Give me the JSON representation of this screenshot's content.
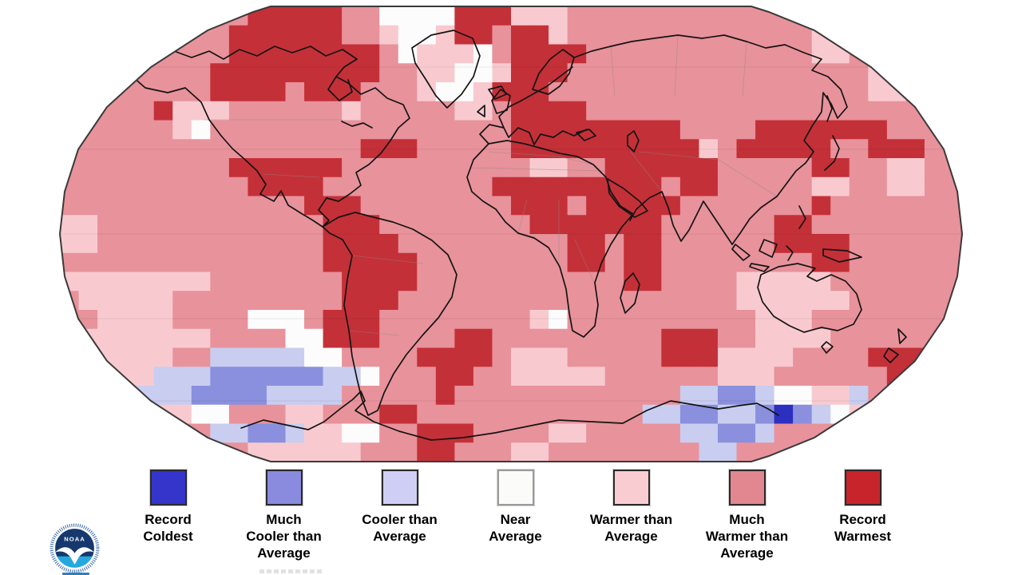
{
  "map": {
    "description": "Global temperature percentile world map, Robinson projection",
    "outline_color": "#3a3a3a",
    "coast_color": "#141414",
    "border_color": "#8a8a8a",
    "gridline_color": "#000000",
    "legend": [
      {
        "id": "record-coldest",
        "label_lines": [
          "Record",
          "Coldest"
        ],
        "color": "#3535cc",
        "border": "#2a2a2a"
      },
      {
        "id": "much-cooler",
        "label_lines": [
          "Much",
          "Cooler than",
          "Average"
        ],
        "color": "#8a8ade",
        "border": "#2a2a2a"
      },
      {
        "id": "cooler-than-average",
        "label_lines": [
          "Cooler than",
          "Average"
        ],
        "color": "#cfcff5",
        "border": "#2a2a2a"
      },
      {
        "id": "near-average",
        "label_lines": [
          "Near",
          "Average"
        ],
        "color": "#fbfbf9",
        "border": "#9a9a9a"
      },
      {
        "id": "warmer-than-average",
        "label_lines": [
          "Warmer than",
          "Average"
        ],
        "color": "#f9ccd1",
        "border": "#2a2a2a"
      },
      {
        "id": "much-warmer",
        "label_lines": [
          "Much",
          "Warmer than",
          "Average"
        ],
        "color": "#e2868f",
        "border": "#2a2a2a"
      },
      {
        "id": "record-warmest",
        "label_lines": [
          "Record",
          "Warmest"
        ],
        "color": "#c8242c",
        "border": "#2a2a2a"
      }
    ],
    "palette": {
      "K": "#2d2fc0",
      "M": "#8a90dd",
      "C": "#c9cdf0",
      "N": "#fcfcfc",
      "W": "#f8cacf",
      "H": "#e8929b",
      "R": "#c43038"
    },
    "grid": {
      "cols": 48,
      "rows": 24,
      "cells": [
        "HHHHHHHHHHRRRRRHHNNNNRRRWWWHHHHHHHHHHHHHHHHHHHHH",
        "HHHHHHHHHRRRRRRHHWNNWRRHRRWHHHHHHHHHHHHHWWHHHHHH",
        "HHHHHHHHHRRRRRRRRHNWWWNHRRRRHHHHHHHHHHHHWWHNWWHH",
        "HHHHHHHHRRRRRRRRRHHWWNNWRRRHHHHHHHHHHHHHHHHWWHHH",
        "HHHHHHHHRRRRHRRRHHHWNNWRRRHHHHHHHHHHHHHHHHHWWHHH",
        "HHHHHRWWWHHHHHHWHHHHHWWHRRRRHHHHHHHHHHHHHHHHHHWW",
        "HHHHHHWNHHHHHHHHHHHHHHHHRRRRRRRRRHHHHRRRRRRRHHHH",
        "HHHHHHHHHHHHHHHHRRRHHHHHRRRRRRRRRRWHRRRRRHHRRRHH",
        "HHHHHHHHHRRRRRRHHHHHHHHHHWWHHRRRRRRHHHHHRRHHWWHH",
        "HHHHHHHHHHRRRRHHHHHHHHHRRRRRRRRRHRRHHHHHWWHHWWHH",
        "HHHHHHHHHHHHHRRRHHHHHHHHRRRHRRRRRHHHHHHHRHHHHHHH",
        "WWHHHHHHHHHHHHRRRHHHHHHHHRRRRRRRHHHHHHRRHHHHHHHH",
        "WWHHHHHHHHHHHHRRRRHHHHHHHHHRRHRRHHHHHHRRRRHHHHHH",
        "HHHHHHHHHHHHHHRRRRRHHHHHHHHRRHRRHHHHHHHHRRHHHHHH",
        "WWWWWWWWHHHHHHHRRRRHHHHHHHHHHHRRHHHHWWWWWHHHHHHH",
        "HWWWWWHHHHHHHHHRRRHHHHHHHHHHHHHHHHHHWWWWWWHHHHHH",
        "HHWWWWHHHHNNNHRRRHHHHHHHHWNHHHHHHHHHHWWWHHHHHHHH",
        "WWWWWWWWHHHHNNRRRHHHHRRHHHHHHHHHRRRHHWWWWHHHHHHH",
        "WWWWWWHHCCCCCNNHHHHRRRRHWWWHHHHHRRRWWWWHHHHRRRHH",
        "WWWWWCCCMMMMMMCCNHHHRRHHWWWWWHHHHHHWWWHHHHHHRRHH",
        "HWWWCCCMMMMCCCCHHHHHRHHHHHHHHHHHHCCMMCNNWWCHHHHH",
        "HWWCCWWNNHHHWWHHHRRHHHHHHHHHHHHCCMMCCMKMCNWWHHHH",
        "HHHHHHHHCCMMCWWNNHHRRRHHHHWWHHHHHCCMMCHHHHHHHHHH",
        "HHHHHHHHHHWWWWWWHHHRRHHHWWHHHHHHHHCCHHHHHHHHHHHH"
      ]
    }
  },
  "logo": {
    "text": "NOAA",
    "navy": "#16386e",
    "light_blue": "#25a8dd",
    "ring_blue": "#2a5ea0"
  }
}
